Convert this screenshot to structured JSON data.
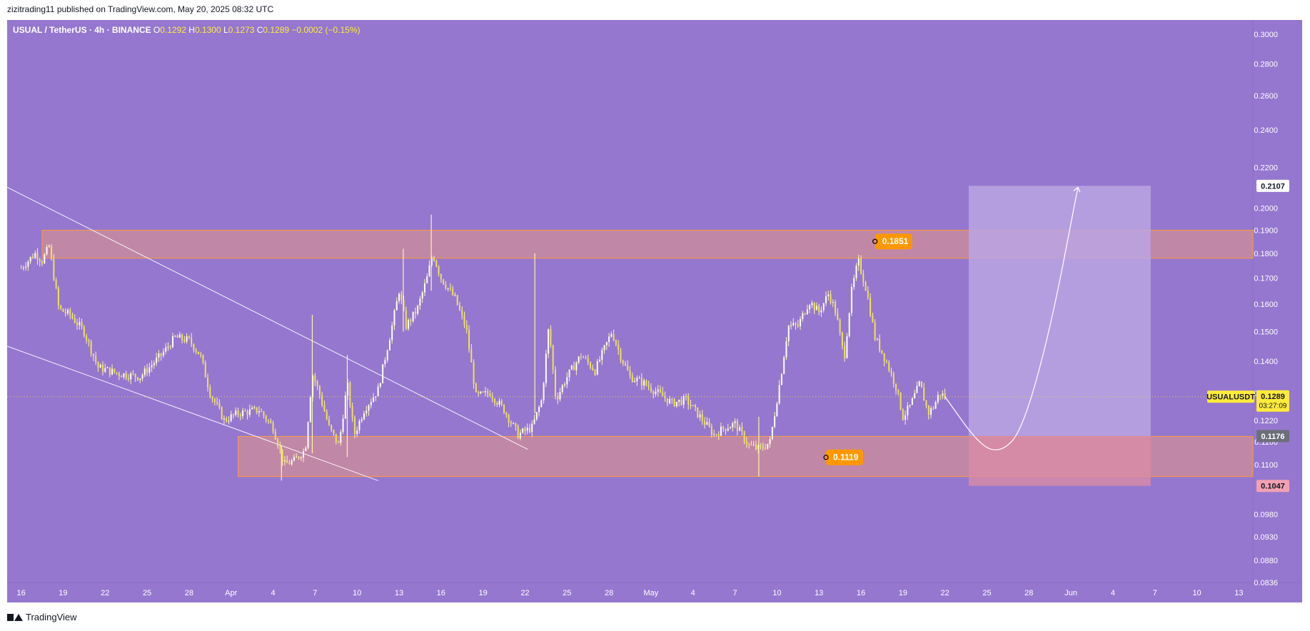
{
  "header": {
    "published_by": "zizitrading11 published on TradingView.com, May 20, 2025 08:32 UTC"
  },
  "footer": {
    "brand": "TradingView"
  },
  "colors": {
    "background": "#9577cf",
    "candle": "#f4e24a",
    "candle_wick": "#fff6a8",
    "zone_fill": "#c98aa0",
    "zone_border": "#ff9a3c",
    "label_orange": "#ff9800",
    "price_tag_yellow": "#ffeb3b",
    "target_box": "#bba5e2",
    "stop_box": "#d98ba5",
    "axis_text": "#ffffff"
  },
  "chart_data": {
    "type": "candlestick",
    "symbol_line": {
      "symbol": "USUAL / TetherUS · 4h · BINANCE",
      "o_label": "O",
      "o": "0.1292",
      "h_label": "H",
      "h": "0.1300",
      "l_label": "L",
      "l": "0.1273",
      "c_label": "C",
      "c": "0.1289",
      "change": "−0.0002 (−0.15%)"
    },
    "y_axis": {
      "scale": "log",
      "range": [
        0.0836,
        0.304
      ],
      "ticks": [
        "0.3000",
        "0.2800",
        "0.2600",
        "0.2400",
        "0.2200",
        "0.2000",
        "0.1900",
        "0.1800",
        "0.1700",
        "0.1600",
        "0.1500",
        "0.1400",
        "0.1300",
        "0.1220",
        "0.1160",
        "0.1100",
        "0.0980",
        "0.0930",
        "0.0880",
        "0.0836"
      ]
    },
    "x_axis": {
      "labels": [
        "16",
        "19",
        "22",
        "25",
        "28",
        "Apr",
        "4",
        "7",
        "10",
        "13",
        "16",
        "19",
        "22",
        "25",
        "28",
        "May",
        "4",
        "7",
        "10",
        "13",
        "16",
        "19",
        "22",
        "25",
        "28",
        "Jun",
        "4",
        "7",
        "10",
        "13"
      ],
      "range_days": [
        -1,
        88
      ]
    },
    "price_path": [
      [
        0,
        0.174
      ],
      [
        1,
        0.18
      ],
      [
        1.5,
        0.177
      ],
      [
        2,
        0.183
      ],
      [
        2.7,
        0.158
      ],
      [
        3.5,
        0.156
      ],
      [
        4.5,
        0.15
      ],
      [
        5.5,
        0.138
      ],
      [
        7,
        0.136
      ],
      [
        8.5,
        0.135
      ],
      [
        10,
        0.142
      ],
      [
        11,
        0.148
      ],
      [
        12,
        0.147
      ],
      [
        12.8,
        0.142
      ],
      [
        13.5,
        0.13
      ],
      [
        14.5,
        0.122
      ],
      [
        15.5,
        0.124
      ],
      [
        17,
        0.125
      ],
      [
        18,
        0.12
      ],
      [
        18.8,
        0.11
      ],
      [
        19.5,
        0.111
      ],
      [
        20.3,
        0.114
      ],
      [
        20.8,
        0.136
      ],
      [
        21.3,
        0.13
      ],
      [
        22,
        0.12
      ],
      [
        22.7,
        0.115
      ],
      [
        23.3,
        0.133
      ],
      [
        23.8,
        0.118
      ],
      [
        24.5,
        0.125
      ],
      [
        25.5,
        0.131
      ],
      [
        26.5,
        0.152
      ],
      [
        27,
        0.165
      ],
      [
        27.5,
        0.152
      ],
      [
        28.3,
        0.158
      ],
      [
        29,
        0.17
      ],
      [
        29.4,
        0.18
      ],
      [
        30,
        0.17
      ],
      [
        31,
        0.162
      ],
      [
        31.8,
        0.151
      ],
      [
        32.5,
        0.129
      ],
      [
        33.5,
        0.13
      ],
      [
        34.5,
        0.125
      ],
      [
        35.5,
        0.118
      ],
      [
        36.5,
        0.12
      ],
      [
        37.2,
        0.128
      ],
      [
        37.7,
        0.152
      ],
      [
        38.2,
        0.128
      ],
      [
        39,
        0.135
      ],
      [
        40,
        0.142
      ],
      [
        41,
        0.137
      ],
      [
        42.2,
        0.15
      ],
      [
        42.8,
        0.142
      ],
      [
        43.5,
        0.135
      ],
      [
        44.5,
        0.133
      ],
      [
        45.5,
        0.13
      ],
      [
        46.5,
        0.127
      ],
      [
        47.5,
        0.128
      ],
      [
        48.5,
        0.123
      ],
      [
        49.5,
        0.118
      ],
      [
        50.3,
        0.12
      ],
      [
        51,
        0.121
      ],
      [
        52,
        0.115
      ],
      [
        52.8,
        0.114
      ],
      [
        53.5,
        0.116
      ],
      [
        54.3,
        0.136
      ],
      [
        54.8,
        0.152
      ],
      [
        55.5,
        0.152
      ],
      [
        56.3,
        0.161
      ],
      [
        57,
        0.157
      ],
      [
        57.7,
        0.164
      ],
      [
        58.2,
        0.157
      ],
      [
        58.8,
        0.141
      ],
      [
        59.3,
        0.164
      ],
      [
        59.8,
        0.177
      ],
      [
        60.4,
        0.165
      ],
      [
        61,
        0.148
      ],
      [
        61.8,
        0.14
      ],
      [
        62.5,
        0.132
      ],
      [
        63,
        0.123
      ],
      [
        63.5,
        0.126
      ],
      [
        64.2,
        0.133
      ],
      [
        64.8,
        0.124
      ],
      [
        65.2,
        0.126
      ],
      [
        65.6,
        0.13
      ],
      [
        66,
        0.1289
      ]
    ],
    "spikes": [
      {
        "day": 20.8,
        "high": 0.156,
        "low": 0.113
      },
      {
        "day": 23.3,
        "high": 0.142,
        "low": 0.112
      },
      {
        "day": 27.3,
        "high": 0.182,
        "low": 0.15
      },
      {
        "day": 29.3,
        "high": 0.197,
        "low": 0.165
      },
      {
        "day": 36.7,
        "high": 0.18,
        "low": 0.124
      },
      {
        "day": 52.7,
        "high": 0.123,
        "low": 0.107
      },
      {
        "day": 18.6,
        "high": 0.115,
        "low": 0.106
      }
    ],
    "resistance_zone": {
      "low": 0.178,
      "high": 0.19,
      "day_start": 1.5,
      "day_end": 88
    },
    "support_zone": {
      "low": 0.107,
      "high": 0.1175,
      "day_start": 15.5,
      "day_end": 88
    },
    "trendline_upper": [
      [
        -1,
        0.21
      ],
      [
        36.2,
        0.114
      ]
    ],
    "trendline_lower": [
      [
        -1,
        0.145
      ],
      [
        25.5,
        0.106
      ]
    ],
    "projection_path": [
      [
        66,
        0.1289
      ],
      [
        68.5,
        0.115
      ],
      [
        70,
        0.1132
      ],
      [
        71.5,
        0.119
      ],
      [
        73.5,
        0.15
      ],
      [
        75.5,
        0.21
      ]
    ],
    "target_box": {
      "day_start": 67.7,
      "day_end": 80.7,
      "top": 0.2107,
      "entry": 0.1176,
      "stop": 0.1047
    },
    "annotations": [
      {
        "label": "0.1851",
        "day": 61,
        "price": 0.1851
      },
      {
        "label": "0.1119",
        "day": 57.5,
        "price": 0.1119
      }
    ],
    "price_tags": [
      {
        "label": "0.2107",
        "price": 0.2107,
        "style": "white"
      },
      {
        "label": "0.1289",
        "sub": "03:27:09",
        "price": 0.1289,
        "style": "yellow"
      },
      {
        "label": "0.1176",
        "price": 0.1176,
        "style": "gray"
      },
      {
        "label": "0.1047",
        "price": 0.1047,
        "style": "pink"
      }
    ],
    "symbol_tag": "USUALUSDT",
    "current_price": 0.1289
  }
}
